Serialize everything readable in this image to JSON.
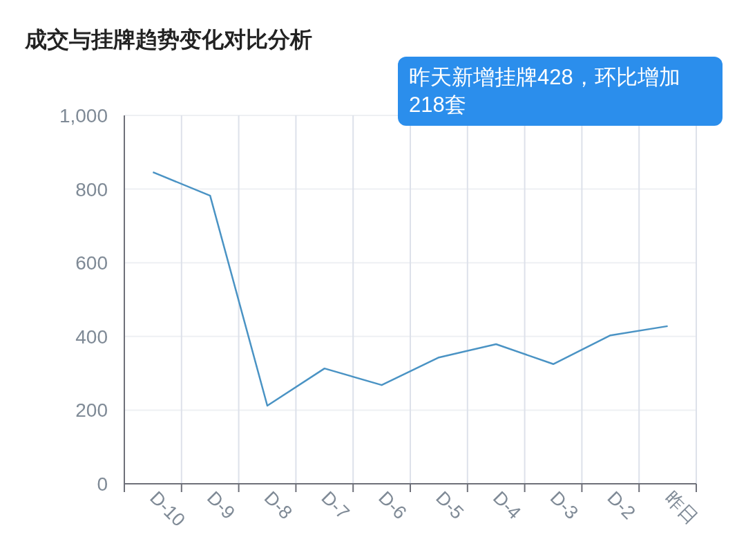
{
  "chart_data": {
    "type": "line",
    "title": "成交与挂牌趋势变化对比分析",
    "annotations": [
      "昨天新增挂牌428，环比增加218套"
    ],
    "categories": [
      "D-10",
      "D-9",
      "D-8",
      "D-7",
      "D-6",
      "D-5",
      "D-4",
      "D-3",
      "D-2",
      "昨日"
    ],
    "series": [
      {
        "color": "#4a93c4",
        "values": [
          846,
          782,
          212,
          313,
          268,
          343,
          379,
          325,
          403,
          428
        ]
      }
    ],
    "ylim": [
      0,
      1000
    ],
    "yticks": [
      0,
      200,
      400,
      600,
      800,
      {
        "value": 1000,
        "label": "1,000"
      }
    ],
    "grid": true,
    "marker": "none",
    "line_style": "solid"
  }
}
